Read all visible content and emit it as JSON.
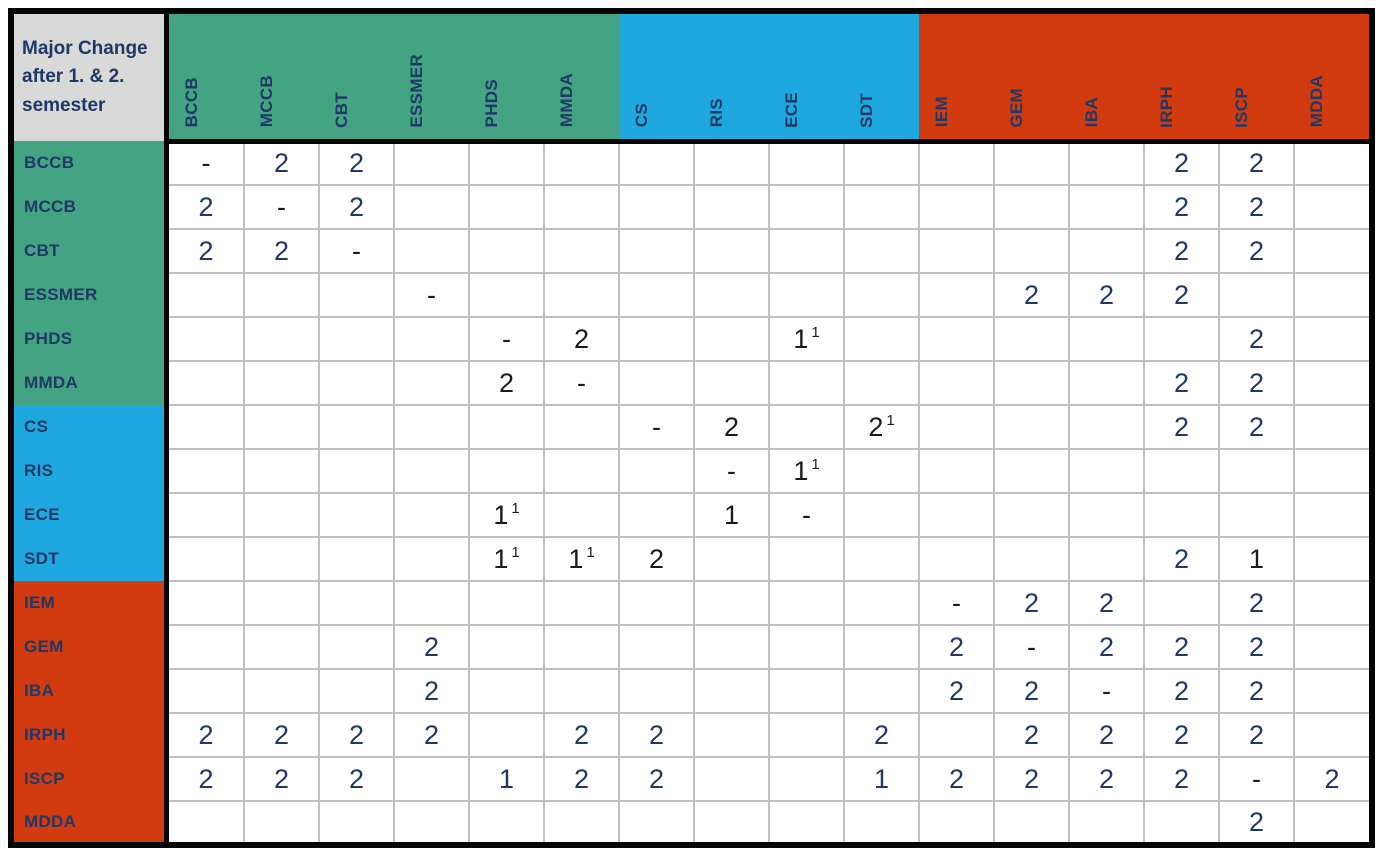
{
  "corner": {
    "text": "Major Change\nafter 1. & 2.\nsemester"
  },
  "colors": {
    "green": "#44A383",
    "blue": "#1FA8E0",
    "red": "#D23B10",
    "navy": "#1F3864",
    "ink_black": "#1A1A1A",
    "corner_bg": "#D9D9D9",
    "grid_line": "#BFBFBF",
    "frame": "#050505"
  },
  "programs": [
    {
      "id": "BCCB",
      "group": "green"
    },
    {
      "id": "MCCB",
      "group": "green"
    },
    {
      "id": "CBT",
      "group": "green"
    },
    {
      "id": "ESSMER",
      "group": "green"
    },
    {
      "id": "PHDS",
      "group": "green"
    },
    {
      "id": "MMDA",
      "group": "green"
    },
    {
      "id": "CS",
      "group": "blue"
    },
    {
      "id": "RIS",
      "group": "blue"
    },
    {
      "id": "ECE",
      "group": "blue"
    },
    {
      "id": "SDT",
      "group": "blue"
    },
    {
      "id": "IEM",
      "group": "red"
    },
    {
      "id": "GEM",
      "group": "red"
    },
    {
      "id": "IBA",
      "group": "red"
    },
    {
      "id": "IRPH",
      "group": "red"
    },
    {
      "id": "ISCP",
      "group": "red"
    },
    {
      "id": "MDDA",
      "group": "red"
    }
  ],
  "matrix": {
    "rows": [
      {
        "label": "BCCB",
        "cells": [
          {
            "v": "-",
            "ink": "black"
          },
          {
            "v": "2"
          },
          {
            "v": "2"
          },
          null,
          null,
          null,
          null,
          null,
          null,
          null,
          null,
          null,
          null,
          {
            "v": "2"
          },
          {
            "v": "2"
          },
          null
        ]
      },
      {
        "label": "MCCB",
        "cells": [
          {
            "v": "2"
          },
          {
            "v": "-",
            "ink": "black"
          },
          {
            "v": "2"
          },
          null,
          null,
          null,
          null,
          null,
          null,
          null,
          null,
          null,
          null,
          {
            "v": "2"
          },
          {
            "v": "2"
          },
          null
        ]
      },
      {
        "label": "CBT",
        "cells": [
          {
            "v": "2"
          },
          {
            "v": "2"
          },
          {
            "v": "-",
            "ink": "black"
          },
          null,
          null,
          null,
          null,
          null,
          null,
          null,
          null,
          null,
          null,
          {
            "v": "2"
          },
          {
            "v": "2"
          },
          null
        ]
      },
      {
        "label": "ESSMER",
        "cells": [
          null,
          null,
          null,
          {
            "v": "-",
            "ink": "black"
          },
          null,
          null,
          null,
          null,
          null,
          null,
          null,
          {
            "v": "2"
          },
          {
            "v": "2"
          },
          {
            "v": "2"
          },
          null,
          null
        ]
      },
      {
        "label": "PHDS",
        "cells": [
          null,
          null,
          null,
          null,
          {
            "v": "-",
            "ink": "black"
          },
          {
            "v": "2",
            "ink": "black"
          },
          null,
          null,
          {
            "v": "1",
            "sup": "1",
            "ink": "black"
          },
          null,
          null,
          null,
          null,
          null,
          {
            "v": "2"
          },
          null
        ]
      },
      {
        "label": "MMDA",
        "cells": [
          null,
          null,
          null,
          null,
          {
            "v": "2",
            "ink": "black"
          },
          {
            "v": "-",
            "ink": "black"
          },
          null,
          null,
          null,
          null,
          null,
          null,
          null,
          {
            "v": "2"
          },
          {
            "v": "2"
          },
          null
        ]
      },
      {
        "label": "CS",
        "cells": [
          null,
          null,
          null,
          null,
          null,
          null,
          {
            "v": "-",
            "ink": "black"
          },
          {
            "v": "2",
            "ink": "black"
          },
          null,
          {
            "v": "2",
            "sup": "1",
            "ink": "black"
          },
          null,
          null,
          null,
          {
            "v": "2"
          },
          {
            "v": "2"
          },
          null
        ]
      },
      {
        "label": "RIS",
        "cells": [
          null,
          null,
          null,
          null,
          null,
          null,
          null,
          {
            "v": "-",
            "ink": "black"
          },
          {
            "v": "1",
            "sup": "1",
            "ink": "black"
          },
          null,
          null,
          null,
          null,
          null,
          null,
          null
        ]
      },
      {
        "label": "ECE",
        "cells": [
          null,
          null,
          null,
          null,
          {
            "v": "1",
            "sup": "1",
            "ink": "black"
          },
          null,
          null,
          {
            "v": "1",
            "ink": "black"
          },
          {
            "v": "-",
            "ink": "black"
          },
          null,
          null,
          null,
          null,
          null,
          null,
          null
        ]
      },
      {
        "label": "SDT",
        "cells": [
          null,
          null,
          null,
          null,
          {
            "v": "1",
            "sup": "1",
            "ink": "black"
          },
          {
            "v": "1",
            "sup": "1",
            "ink": "black"
          },
          {
            "v": "2",
            "ink": "black"
          },
          null,
          null,
          null,
          null,
          null,
          null,
          {
            "v": "2"
          },
          {
            "v": "1",
            "ink": "black"
          },
          null
        ]
      },
      {
        "label": "IEM",
        "cells": [
          null,
          null,
          null,
          null,
          null,
          null,
          null,
          null,
          null,
          null,
          {
            "v": "-",
            "ink": "black"
          },
          {
            "v": "2"
          },
          {
            "v": "2"
          },
          null,
          {
            "v": "2"
          },
          null
        ]
      },
      {
        "label": "GEM",
        "cells": [
          null,
          null,
          null,
          {
            "v": "2"
          },
          null,
          null,
          null,
          null,
          null,
          null,
          {
            "v": "2"
          },
          {
            "v": "-",
            "ink": "black"
          },
          {
            "v": "2"
          },
          {
            "v": "2"
          },
          {
            "v": "2"
          },
          null
        ]
      },
      {
        "label": "IBA",
        "cells": [
          null,
          null,
          null,
          {
            "v": "2"
          },
          null,
          null,
          null,
          null,
          null,
          null,
          {
            "v": "2"
          },
          {
            "v": "2"
          },
          {
            "v": "-",
            "ink": "black"
          },
          {
            "v": "2"
          },
          {
            "v": "2"
          },
          null
        ]
      },
      {
        "label": "IRPH",
        "cells": [
          {
            "v": "2"
          },
          {
            "v": "2"
          },
          {
            "v": "2"
          },
          {
            "v": "2"
          },
          null,
          {
            "v": "2"
          },
          {
            "v": "2"
          },
          null,
          null,
          {
            "v": "2"
          },
          null,
          {
            "v": "2"
          },
          {
            "v": "2"
          },
          {
            "v": "2"
          },
          {
            "v": "2"
          },
          null
        ]
      },
      {
        "label": "ISCP",
        "cells": [
          {
            "v": "2"
          },
          {
            "v": "2"
          },
          {
            "v": "2"
          },
          null,
          {
            "v": "1"
          },
          {
            "v": "2"
          },
          {
            "v": "2"
          },
          null,
          null,
          {
            "v": "1"
          },
          {
            "v": "2"
          },
          {
            "v": "2"
          },
          {
            "v": "2"
          },
          {
            "v": "2"
          },
          {
            "v": "-",
            "ink": "black"
          },
          {
            "v": "2"
          }
        ]
      },
      {
        "label": "MDDA",
        "cells": [
          null,
          null,
          null,
          null,
          null,
          null,
          null,
          null,
          null,
          null,
          null,
          null,
          null,
          null,
          {
            "v": "2"
          },
          null
        ]
      }
    ]
  }
}
